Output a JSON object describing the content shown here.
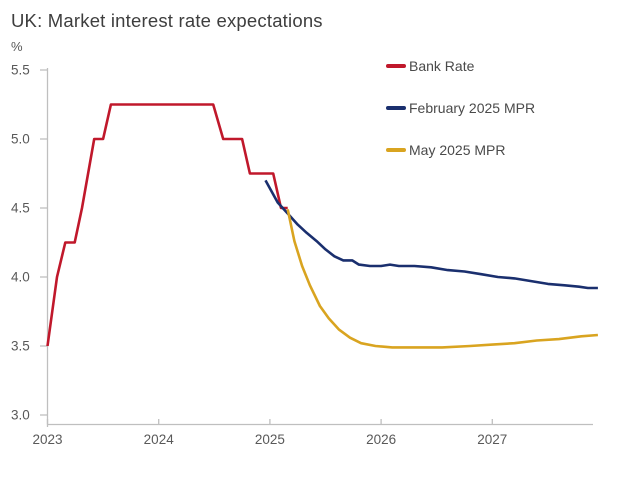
{
  "title": "UK: Market interest rate expectations",
  "y_axis_unit_label": "%",
  "legend": [
    {
      "label": "Bank Rate",
      "color": "#c0182b"
    },
    {
      "label": "February 2025 MPR",
      "color": "#1a2f6e"
    },
    {
      "label": "May 2025 MPR",
      "color": "#d9a420"
    }
  ],
  "colors": {
    "title_text": "#3e3e3e",
    "tick_text": "#595959",
    "axis_line": "#bfbfbf",
    "bank_rate": "#c0182b",
    "feb_2025_mpr": "#1a2f6e",
    "may_2025_mpr": "#d9a420"
  },
  "chart_data": {
    "type": "line",
    "title": "UK: Market interest rate expectations",
    "xlabel": "",
    "ylabel": "%",
    "xlim": [
      2023.0,
      2027.95
    ],
    "ylim": [
      3.0,
      5.5
    ],
    "grid": false,
    "legend_position": "top-right",
    "x_ticks": [
      "2023",
      "2024",
      "2025",
      "2026",
      "2027"
    ],
    "x_tick_values": [
      2023,
      2024,
      2025,
      2026,
      2027
    ],
    "y_ticks": [
      "5.5",
      "5.0",
      "4.5",
      "4.0",
      "3.5",
      "3.0"
    ],
    "y_tick_values": [
      5.5,
      5.0,
      4.5,
      4.0,
      3.5,
      3.0
    ],
    "series": [
      {
        "name": "Bank Rate",
        "color": "#c0182b",
        "points": [
          [
            2023.0,
            3.5
          ],
          [
            2023.085,
            4.0
          ],
          [
            2023.16,
            4.25
          ],
          [
            2023.245,
            4.25
          ],
          [
            2023.31,
            4.5
          ],
          [
            2023.42,
            5.0
          ],
          [
            2023.5,
            5.0
          ],
          [
            2023.57,
            5.25
          ],
          [
            2024.49,
            5.25
          ],
          [
            2024.58,
            5.0
          ],
          [
            2024.75,
            5.0
          ],
          [
            2024.82,
            4.75
          ],
          [
            2025.03,
            4.75
          ],
          [
            2025.1,
            4.5
          ],
          [
            2025.16,
            4.5
          ]
        ]
      },
      {
        "name": "February 2025 MPR",
        "color": "#1a2f6e",
        "points": [
          [
            2024.96,
            4.7
          ],
          [
            2025.07,
            4.54
          ],
          [
            2025.16,
            4.46
          ],
          [
            2025.25,
            4.38
          ],
          [
            2025.33,
            4.32
          ],
          [
            2025.42,
            4.26
          ],
          [
            2025.5,
            4.2
          ],
          [
            2025.58,
            4.15
          ],
          [
            2025.66,
            4.12
          ],
          [
            2025.74,
            4.12
          ],
          [
            2025.8,
            4.09
          ],
          [
            2025.9,
            4.08
          ],
          [
            2026.0,
            4.08
          ],
          [
            2026.08,
            4.09
          ],
          [
            2026.16,
            4.08
          ],
          [
            2026.3,
            4.08
          ],
          [
            2026.45,
            4.07
          ],
          [
            2026.6,
            4.05
          ],
          [
            2026.75,
            4.04
          ],
          [
            2026.9,
            4.02
          ],
          [
            2027.05,
            4.0
          ],
          [
            2027.2,
            3.99
          ],
          [
            2027.35,
            3.97
          ],
          [
            2027.5,
            3.95
          ],
          [
            2027.65,
            3.94
          ],
          [
            2027.78,
            3.93
          ],
          [
            2027.86,
            3.92
          ],
          [
            2027.95,
            3.92
          ]
        ]
      },
      {
        "name": "May 2025 MPR",
        "color": "#d9a420",
        "points": [
          [
            2025.16,
            4.49
          ],
          [
            2025.22,
            4.26
          ],
          [
            2025.29,
            4.08
          ],
          [
            2025.36,
            3.94
          ],
          [
            2025.45,
            3.79
          ],
          [
            2025.53,
            3.7
          ],
          [
            2025.62,
            3.62
          ],
          [
            2025.72,
            3.56
          ],
          [
            2025.82,
            3.52
          ],
          [
            2025.95,
            3.5
          ],
          [
            2026.1,
            3.49
          ],
          [
            2026.3,
            3.49
          ],
          [
            2026.55,
            3.49
          ],
          [
            2026.8,
            3.5
          ],
          [
            2027.0,
            3.51
          ],
          [
            2027.2,
            3.52
          ],
          [
            2027.4,
            3.54
          ],
          [
            2027.6,
            3.55
          ],
          [
            2027.8,
            3.57
          ],
          [
            2027.95,
            3.58
          ]
        ]
      }
    ]
  }
}
